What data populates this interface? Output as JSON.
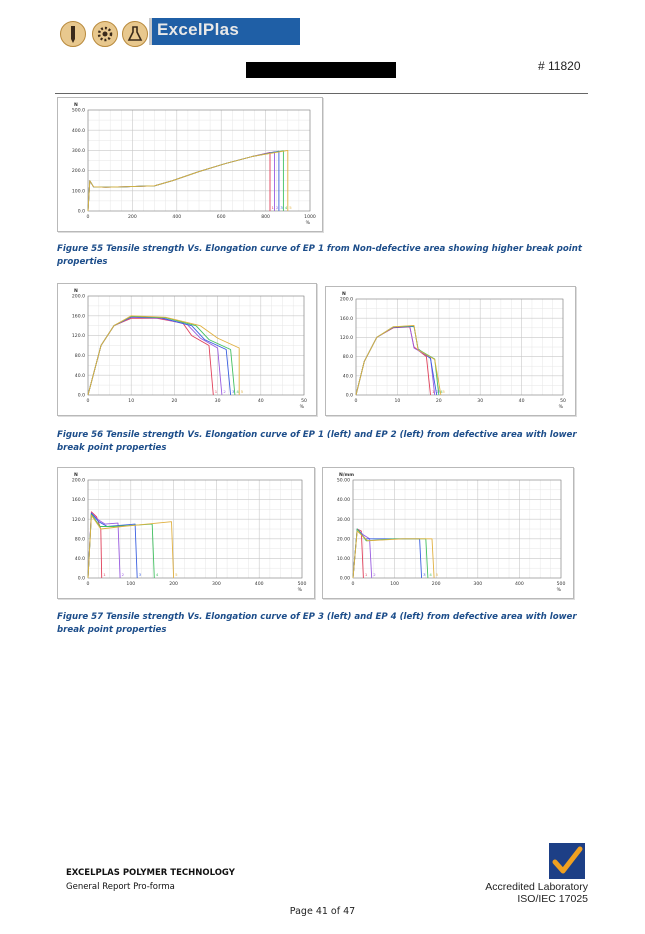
{
  "header": {
    "brand": "ExcelPlas",
    "doc_number": "# 11820"
  },
  "figures": [
    {
      "caption": "Figure 55 Tensile strength Vs. Elongation curve of EP 1 from Non-defective area showing higher break point properties"
    },
    {
      "caption": "Figure 56 Tensile strength Vs. Elongation curve of EP 1 (left) and EP 2 (left) from defective area with lower break point properties"
    },
    {
      "caption": "Figure 57 Tensile strength Vs. Elongation curve of EP 3 (left) and EP 4 (left) from defective area with lower break point properties"
    }
  ],
  "footer": {
    "company": "EXCELPLAS POLYMER TECHNOLOGY",
    "subtitle": "General Report Pro-forma",
    "accredited_line1": "Accredited Laboratory",
    "accredited_line2": "ISO/IEC 17025",
    "page": "Page 41 of 47"
  },
  "colors": {
    "series": [
      "#e0405a",
      "#9a5ce0",
      "#3a5fe0",
      "#41c060",
      "#e0b040",
      "#e060e0"
    ]
  },
  "chart_data": [
    {
      "id": "fig55",
      "type": "line",
      "ylabel": "N",
      "xlabel": "%",
      "xlim": [
        0,
        1000
      ],
      "ylim": [
        0,
        500
      ],
      "xticks": [
        0,
        200,
        400,
        600,
        800,
        1000
      ],
      "xtick_labels": [
        "0",
        "200",
        "400",
        "600",
        "800",
        "1000"
      ],
      "yticks": [
        0,
        100,
        200,
        300,
        400,
        500
      ],
      "ytick_labels": [
        "0.0",
        "100.0",
        "200.0",
        "300.0",
        "400.0",
        "500.0"
      ],
      "break_markers": [
        "1",
        "2",
        "3",
        "4",
        "5"
      ],
      "series": [
        {
          "points": [
            [
              0,
              0
            ],
            [
              8,
              150
            ],
            [
              25,
              120
            ],
            [
              80,
              118
            ],
            [
              160,
              120
            ],
            [
              300,
              125
            ],
            [
              380,
              150
            ],
            [
              500,
              195
            ],
            [
              620,
              235
            ],
            [
              740,
              270
            ],
            [
              820,
              290
            ],
            [
              820,
              0
            ]
          ]
        },
        {
          "points": [
            [
              0,
              0
            ],
            [
              8,
              150
            ],
            [
              25,
              120
            ],
            [
              80,
              118
            ],
            [
              160,
              120
            ],
            [
              300,
              125
            ],
            [
              380,
              150
            ],
            [
              500,
              195
            ],
            [
              620,
              235
            ],
            [
              740,
              270
            ],
            [
              840,
              293
            ],
            [
              840,
              0
            ]
          ]
        },
        {
          "points": [
            [
              0,
              0
            ],
            [
              8,
              150
            ],
            [
              25,
              120
            ],
            [
              80,
              118
            ],
            [
              160,
              120
            ],
            [
              300,
              125
            ],
            [
              380,
              150
            ],
            [
              500,
              195
            ],
            [
              620,
              235
            ],
            [
              740,
              270
            ],
            [
              860,
              296
            ],
            [
              860,
              0
            ]
          ]
        },
        {
          "points": [
            [
              0,
              0
            ],
            [
              8,
              150
            ],
            [
              25,
              120
            ],
            [
              80,
              118
            ],
            [
              160,
              120
            ],
            [
              300,
              125
            ],
            [
              380,
              150
            ],
            [
              500,
              195
            ],
            [
              620,
              235
            ],
            [
              740,
              270
            ],
            [
              880,
              298
            ],
            [
              880,
              0
            ]
          ]
        },
        {
          "points": [
            [
              0,
              0
            ],
            [
              8,
              150
            ],
            [
              25,
              120
            ],
            [
              80,
              118
            ],
            [
              160,
              120
            ],
            [
              300,
              125
            ],
            [
              380,
              150
            ],
            [
              500,
              195
            ],
            [
              620,
              235
            ],
            [
              740,
              270
            ],
            [
              900,
              300
            ],
            [
              900,
              0
            ]
          ]
        }
      ]
    },
    {
      "id": "fig56-left",
      "type": "line",
      "ylabel": "N",
      "xlabel": "%",
      "xlim": [
        0,
        50
      ],
      "ylim": [
        0,
        200
      ],
      "xticks": [
        0,
        10,
        20,
        30,
        40,
        50
      ],
      "xtick_labels": [
        "0",
        "10",
        "20",
        "30",
        "40",
        "50"
      ],
      "yticks": [
        0,
        40,
        80,
        120,
        160,
        200
      ],
      "ytick_labels": [
        "0.0",
        "40.0",
        "80.0",
        "120.0",
        "160.0",
        "200.0"
      ],
      "break_markers": [
        "1",
        "2",
        "3",
        "4",
        "5"
      ],
      "series": [
        {
          "points": [
            [
              0,
              0
            ],
            [
              3,
              100
            ],
            [
              6,
              140
            ],
            [
              10,
              155
            ],
            [
              16,
              155
            ],
            [
              22,
              145
            ],
            [
              24,
              120
            ],
            [
              28,
              100
            ],
            [
              29,
              0
            ]
          ]
        },
        {
          "points": [
            [
              0,
              0
            ],
            [
              3,
              100
            ],
            [
              6,
              140
            ],
            [
              10,
              157
            ],
            [
              17,
              155
            ],
            [
              23,
              142
            ],
            [
              26,
              115
            ],
            [
              30,
              95
            ],
            [
              31,
              0
            ]
          ]
        },
        {
          "points": [
            [
              0,
              0
            ],
            [
              3,
              100
            ],
            [
              6,
              140
            ],
            [
              10,
              158
            ],
            [
              17,
              156
            ],
            [
              24,
              140
            ],
            [
              27,
              112
            ],
            [
              32,
              92
            ],
            [
              33,
              0
            ]
          ]
        },
        {
          "points": [
            [
              0,
              0
            ],
            [
              3,
              100
            ],
            [
              6,
              140
            ],
            [
              10,
              159
            ],
            [
              18,
              156
            ],
            [
              25,
              140
            ],
            [
              28,
              112
            ],
            [
              33,
              92
            ],
            [
              34,
              0
            ]
          ]
        },
        {
          "points": [
            [
              0,
              0
            ],
            [
              3,
              100
            ],
            [
              6,
              140
            ],
            [
              10,
              160
            ],
            [
              18,
              157
            ],
            [
              26,
              140
            ],
            [
              30,
              115
            ],
            [
              35,
              95
            ],
            [
              35,
              0
            ]
          ]
        }
      ]
    },
    {
      "id": "fig56-right",
      "type": "line",
      "ylabel": "N",
      "xlabel": "%",
      "xlim": [
        0,
        50
      ],
      "ylim": [
        0,
        200
      ],
      "xticks": [
        0,
        10,
        20,
        30,
        40,
        50
      ],
      "xtick_labels": [
        "0",
        "10",
        "20",
        "30",
        "40",
        "50"
      ],
      "yticks": [
        0,
        40,
        80,
        120,
        160,
        200
      ],
      "ytick_labels": [
        "0.0",
        "40.0",
        "80.0",
        "120.0",
        "160.0",
        "200.0"
      ],
      "break_markers": [
        "1",
        "2",
        "3",
        "4",
        "5"
      ],
      "series": [
        {
          "points": [
            [
              0,
              0
            ],
            [
              2,
              70
            ],
            [
              5,
              120
            ],
            [
              9,
              140
            ],
            [
              13,
              142
            ],
            [
              14,
              100
            ],
            [
              17,
              80
            ],
            [
              18,
              0
            ]
          ]
        },
        {
          "points": [
            [
              0,
              0
            ],
            [
              2,
              70
            ],
            [
              5,
              120
            ],
            [
              9,
              141
            ],
            [
              13,
              143
            ],
            [
              14,
              98
            ],
            [
              18,
              78
            ],
            [
              19,
              0
            ]
          ]
        },
        {
          "points": [
            [
              0,
              0
            ],
            [
              2,
              70
            ],
            [
              5,
              120
            ],
            [
              9,
              141
            ],
            [
              14,
              143
            ],
            [
              15,
              96
            ],
            [
              18,
              76
            ],
            [
              19.5,
              0
            ]
          ]
        },
        {
          "points": [
            [
              0,
              0
            ],
            [
              2,
              70
            ],
            [
              5,
              120
            ],
            [
              9,
              142
            ],
            [
              14,
              144
            ],
            [
              15,
              95
            ],
            [
              19,
              75
            ],
            [
              20,
              0
            ]
          ]
        },
        {
          "points": [
            [
              0,
              0
            ],
            [
              2,
              70
            ],
            [
              5,
              120
            ],
            [
              9,
              142
            ],
            [
              14,
              145
            ],
            [
              15,
              94
            ],
            [
              19,
              74
            ],
            [
              20.5,
              0
            ]
          ]
        }
      ]
    },
    {
      "id": "fig57-left",
      "type": "line",
      "ylabel": "N",
      "xlabel": "%",
      "xlim": [
        0,
        500
      ],
      "ylim": [
        0,
        200
      ],
      "xticks": [
        0,
        100,
        200,
        300,
        400,
        500
      ],
      "xtick_labels": [
        "0",
        "100",
        "200",
        "300",
        "400",
        "500"
      ],
      "yticks": [
        0,
        40,
        80,
        120,
        160,
        200
      ],
      "ytick_labels": [
        "0.0",
        "40.0",
        "80.0",
        "120.0",
        "160.0",
        "200.0"
      ],
      "break_markers": [
        "1",
        "2",
        "3",
        "4",
        "5"
      ],
      "series": [
        {
          "points": [
            [
              0,
              0
            ],
            [
              8,
              135
            ],
            [
              20,
              125
            ],
            [
              30,
              100
            ],
            [
              32,
              0
            ]
          ]
        },
        {
          "points": [
            [
              0,
              0
            ],
            [
              8,
              133
            ],
            [
              22,
              120
            ],
            [
              40,
              110
            ],
            [
              70,
              112
            ],
            [
              75,
              0
            ]
          ]
        },
        {
          "points": [
            [
              0,
              0
            ],
            [
              8,
              132
            ],
            [
              25,
              115
            ],
            [
              45,
              105
            ],
            [
              110,
              110
            ],
            [
              115,
              0
            ]
          ]
        },
        {
          "points": [
            [
              0,
              0
            ],
            [
              8,
              130
            ],
            [
              28,
              105
            ],
            [
              60,
              105
            ],
            [
              150,
              110
            ],
            [
              155,
              0
            ]
          ]
        },
        {
          "points": [
            [
              0,
              0
            ],
            [
              8,
              128
            ],
            [
              30,
              100
            ],
            [
              80,
              105
            ],
            [
              195,
              115
            ],
            [
              200,
              0
            ]
          ]
        }
      ]
    },
    {
      "id": "fig57-right",
      "type": "line",
      "ylabel": "N/mm",
      "xlabel": "%",
      "xlim": [
        0,
        500
      ],
      "ylim": [
        0,
        50
      ],
      "xticks": [
        0,
        100,
        200,
        300,
        400,
        500
      ],
      "xtick_labels": [
        "0",
        "100",
        "200",
        "300",
        "400",
        "500"
      ],
      "yticks": [
        0,
        10,
        20,
        30,
        40,
        50
      ],
      "ytick_labels": [
        "0.00",
        "10.00",
        "20.00",
        "30.00",
        "40.00",
        "50.00"
      ],
      "break_markers": [
        "1",
        "2",
        "3",
        "4",
        "5"
      ],
      "series": [
        {
          "points": [
            [
              0,
              0
            ],
            [
              10,
              25
            ],
            [
              20,
              24
            ],
            [
              25,
              0
            ]
          ]
        },
        {
          "points": [
            [
              0,
              0
            ],
            [
              10,
              25
            ],
            [
              25,
              22
            ],
            [
              40,
              20
            ],
            [
              45,
              0
            ]
          ]
        },
        {
          "points": [
            [
              0,
              0
            ],
            [
              10,
              25
            ],
            [
              30,
              20
            ],
            [
              100,
              20
            ],
            [
              160,
              20
            ],
            [
              165,
              0
            ]
          ]
        },
        {
          "points": [
            [
              0,
              0
            ],
            [
              10,
              25
            ],
            [
              32,
              19
            ],
            [
              100,
              20
            ],
            [
              175,
              20
            ],
            [
              180,
              0
            ]
          ]
        },
        {
          "points": [
            [
              0,
              0
            ],
            [
              10,
              24
            ],
            [
              35,
              19
            ],
            [
              120,
              20
            ],
            [
              190,
              20
            ],
            [
              195,
              0
            ]
          ]
        }
      ]
    }
  ]
}
